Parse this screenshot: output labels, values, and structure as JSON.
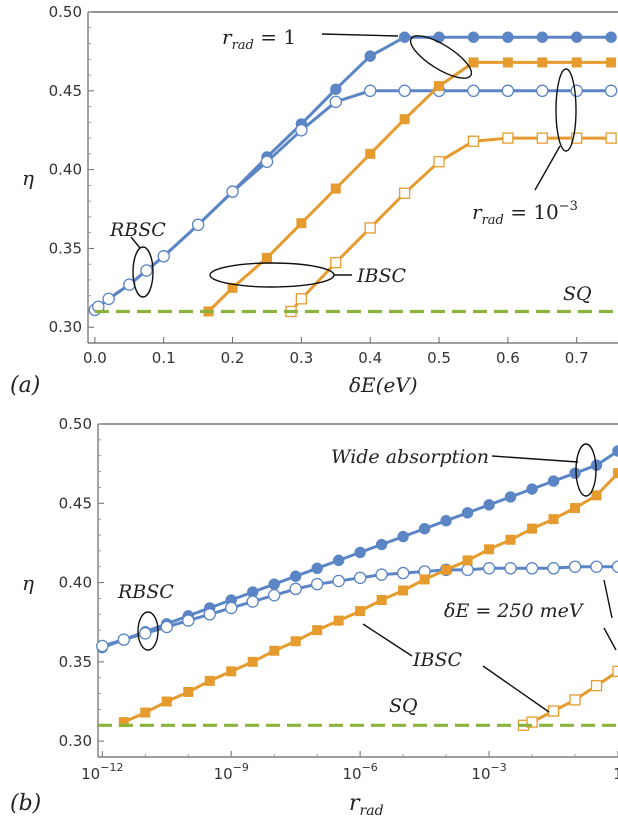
{
  "chart_data": [
    {
      "panel": "(a)",
      "type": "line",
      "xlabel": "δE(eV)",
      "ylabel": "η",
      "xlim": [
        -0.01,
        0.76
      ],
      "ylim": [
        0.29,
        0.5
      ],
      "x_ticks": [
        0.0,
        0.1,
        0.2,
        0.3,
        0.4,
        0.5,
        0.6,
        0.7
      ],
      "x_tick_labels": [
        "0.0",
        "0.1",
        "0.2",
        "0.3",
        "0.4",
        "0.5",
        "0.6",
        "0.7"
      ],
      "y_ticks": [
        0.3,
        0.35,
        0.4,
        0.45,
        0.5
      ],
      "y_tick_labels": [
        "0.30",
        "0.35",
        "0.40",
        "0.45",
        "0.50"
      ],
      "annotations": {
        "r1": {
          "pre": "r",
          "sub": "rad",
          "post": " = 1"
        },
        "r3": {
          "pre": "r",
          "sub": "rad",
          "mid": " = 10",
          "sup": "−3"
        },
        "rbsc": "RBSC",
        "ibsc": "IBSC",
        "sq": "SQ"
      },
      "series": [
        {
          "kind": "rbsc_r1",
          "color": "#5b85c4",
          "marker": "filled-circle",
          "x": [
            0.0,
            0.005,
            0.02,
            0.05,
            0.075,
            0.1,
            0.15,
            0.2,
            0.25,
            0.3,
            0.35,
            0.4,
            0.45,
            0.5,
            0.55,
            0.6,
            0.65,
            0.7,
            0.75
          ],
          "y": [
            0.311,
            0.313,
            0.318,
            0.327,
            0.336,
            0.345,
            0.365,
            0.386,
            0.408,
            0.429,
            0.451,
            0.472,
            0.484,
            0.484,
            0.484,
            0.484,
            0.484,
            0.484,
            0.484
          ]
        },
        {
          "kind": "rbsc_r3",
          "color": "#5b85c4",
          "marker": "open-circle",
          "x": [
            0.0,
            0.005,
            0.02,
            0.05,
            0.075,
            0.1,
            0.15,
            0.2,
            0.25,
            0.3,
            0.35,
            0.4,
            0.45,
            0.5,
            0.55,
            0.6,
            0.65,
            0.7,
            0.75
          ],
          "y": [
            0.311,
            0.313,
            0.318,
            0.327,
            0.336,
            0.345,
            0.365,
            0.386,
            0.405,
            0.425,
            0.443,
            0.45,
            0.45,
            0.45,
            0.45,
            0.45,
            0.45,
            0.45,
            0.45
          ]
        },
        {
          "kind": "ibsc_r1",
          "color": "#e69b2e",
          "marker": "filled-square",
          "x": [
            0.165,
            0.2,
            0.25,
            0.3,
            0.35,
            0.4,
            0.45,
            0.5,
            0.55,
            0.6,
            0.65,
            0.7,
            0.75
          ],
          "y": [
            0.31,
            0.325,
            0.344,
            0.366,
            0.388,
            0.41,
            0.432,
            0.453,
            0.468,
            0.468,
            0.468,
            0.468,
            0.468
          ]
        },
        {
          "kind": "ibsc_r3",
          "color": "#e69b2e",
          "marker": "open-square",
          "x": [
            0.285,
            0.3,
            0.35,
            0.4,
            0.45,
            0.5,
            0.55,
            0.6,
            0.65,
            0.7,
            0.75
          ],
          "y": [
            0.31,
            0.318,
            0.341,
            0.363,
            0.385,
            0.405,
            0.418,
            0.42,
            0.42,
            0.42,
            0.42
          ]
        },
        {
          "kind": "sq",
          "color": "#8cb33c",
          "marker": "dashed",
          "x": [
            0.0,
            0.76
          ],
          "y": [
            0.31,
            0.31
          ]
        }
      ]
    },
    {
      "panel": "(b)",
      "type": "line",
      "xscale": "log",
      "xlabel_pre": "r",
      "xlabel_sub": "rad",
      "ylabel": "η",
      "xlim_log10": [
        -12.1,
        0.0
      ],
      "ylim": [
        0.29,
        0.5
      ],
      "x_ticks_log10": [
        -12,
        -9,
        -6,
        -3,
        0
      ],
      "x_tick_labels": [
        {
          "base": "10",
          "exp": "−12"
        },
        {
          "base": "10",
          "exp": "−9"
        },
        {
          "base": "10",
          "exp": "−6"
        },
        {
          "base": "10",
          "exp": "−3"
        },
        {
          "base": "1",
          "exp": ""
        }
      ],
      "y_ticks": [
        0.3,
        0.35,
        0.4,
        0.45,
        0.5
      ],
      "y_tick_labels": [
        "0.30",
        "0.35",
        "0.40",
        "0.45",
        "0.50"
      ],
      "annotations": {
        "wide": "Wide absorption",
        "de": "δE = 250 meV",
        "rbsc": "RBSC",
        "ibsc": "IBSC",
        "sq": "SQ"
      },
      "series": [
        {
          "kind": "rbsc_wide",
          "color": "#5b85c4",
          "marker": "filled-circle",
          "log10_x": [
            -12,
            -11.5,
            -11,
            -10.5,
            -10,
            -9.5,
            -9,
            -8.5,
            -8,
            -7.5,
            -7,
            -6.5,
            -6,
            -5.5,
            -5,
            -4.5,
            -4,
            -3.5,
            -3,
            -2.5,
            -2,
            -1.5,
            -1,
            -0.5,
            0
          ],
          "y": [
            0.359,
            0.364,
            0.369,
            0.374,
            0.379,
            0.384,
            0.389,
            0.394,
            0.399,
            0.404,
            0.409,
            0.414,
            0.419,
            0.424,
            0.429,
            0.434,
            0.439,
            0.444,
            0.449,
            0.454,
            0.459,
            0.464,
            0.469,
            0.474,
            0.483
          ]
        },
        {
          "kind": "rbsc_250",
          "color": "#5b85c4",
          "marker": "open-circle",
          "log10_x": [
            -12,
            -11.5,
            -11,
            -10.5,
            -10,
            -9.5,
            -9,
            -8.5,
            -8,
            -7.5,
            -7,
            -6.5,
            -6,
            -5.5,
            -5,
            -4.5,
            -4,
            -3.5,
            -3,
            -2.5,
            -2,
            -1.5,
            -1,
            -0.5,
            0
          ],
          "y": [
            0.36,
            0.364,
            0.368,
            0.372,
            0.376,
            0.38,
            0.384,
            0.388,
            0.392,
            0.396,
            0.399,
            0.401,
            0.403,
            0.405,
            0.406,
            0.407,
            0.408,
            0.408,
            0.409,
            0.409,
            0.409,
            0.409,
            0.41,
            0.41,
            0.41
          ]
        },
        {
          "kind": "ibsc_wide",
          "color": "#e69b2e",
          "marker": "filled-square",
          "log10_x": [
            -11.5,
            -11,
            -10.5,
            -10,
            -9.5,
            -9,
            -8.5,
            -8,
            -7.5,
            -7,
            -6.5,
            -6,
            -5.5,
            -5,
            -4.5,
            -4,
            -3.5,
            -3,
            -2.5,
            -2,
            -1.5,
            -1,
            -0.5,
            0
          ],
          "y": [
            0.312,
            0.318,
            0.325,
            0.331,
            0.338,
            0.344,
            0.35,
            0.357,
            0.363,
            0.37,
            0.376,
            0.382,
            0.389,
            0.395,
            0.402,
            0.408,
            0.414,
            0.421,
            0.427,
            0.434,
            0.44,
            0.447,
            0.455,
            0.469
          ]
        },
        {
          "kind": "ibsc_250",
          "color": "#e69b2e",
          "marker": "open-square",
          "log10_x": [
            -2.2,
            -2,
            -1.5,
            -1,
            -0.5,
            0
          ],
          "y": [
            0.31,
            0.312,
            0.319,
            0.326,
            0.335,
            0.344
          ]
        },
        {
          "kind": "sq",
          "color": "#8cb33c",
          "marker": "dashed",
          "log10_x": [
            -12.1,
            0
          ],
          "y": [
            0.31,
            0.31
          ]
        }
      ]
    }
  ]
}
